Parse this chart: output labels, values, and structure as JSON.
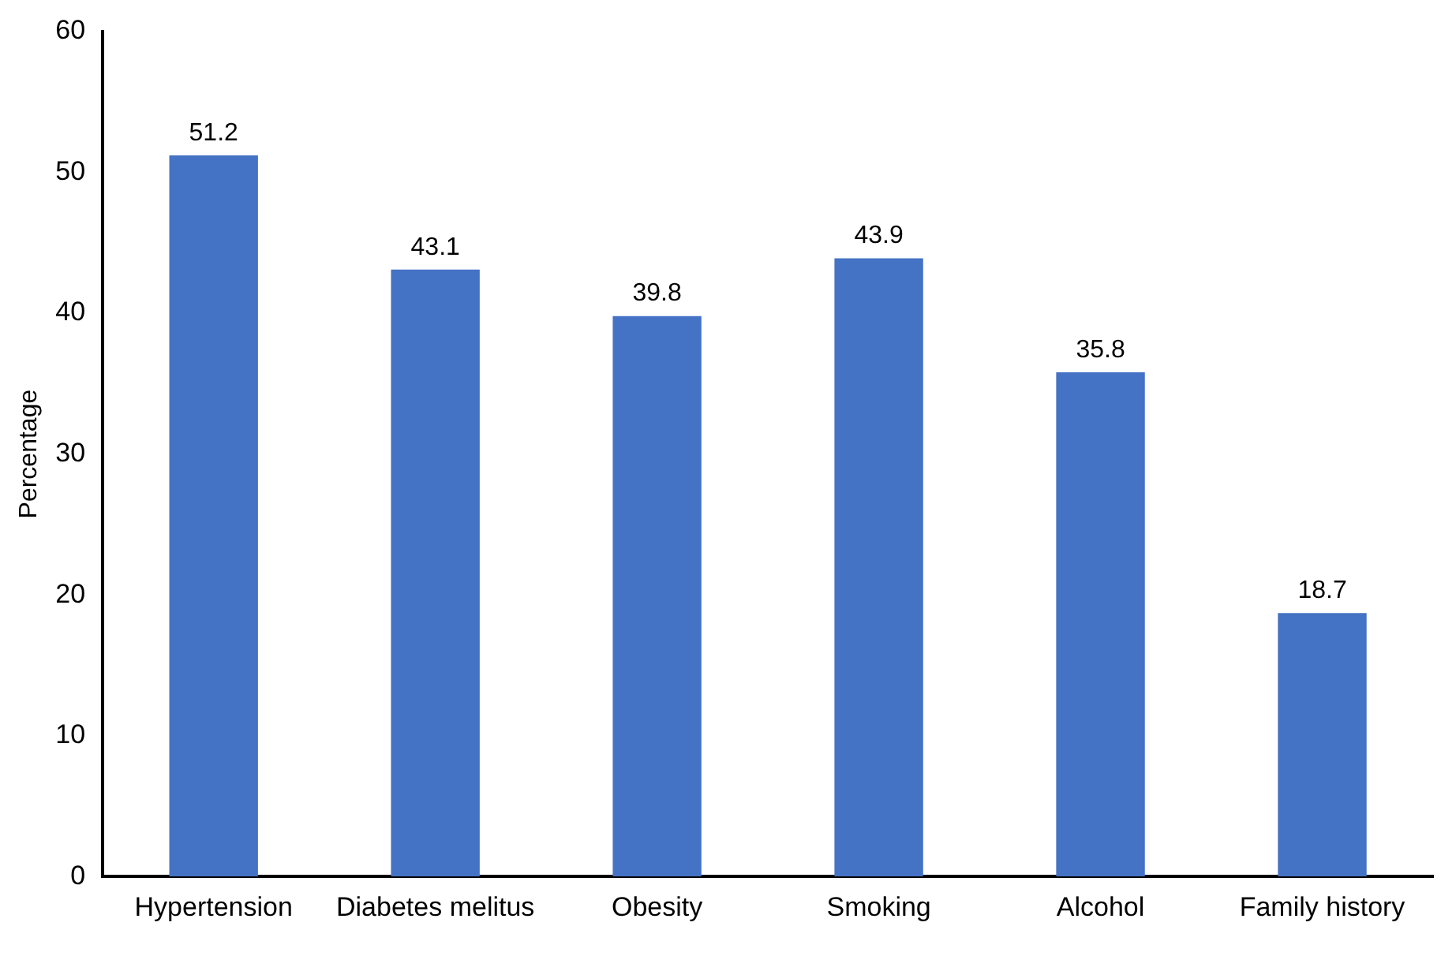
{
  "chart_data": {
    "type": "bar",
    "ylabel": "Percentage",
    "categories": [
      "Hypertension",
      "Diabetes melitus",
      "Obesity",
      "Smoking",
      "Alcohol",
      "Family history"
    ],
    "values": [
      51.2,
      43.1,
      39.8,
      43.9,
      35.8,
      18.7
    ],
    "color": "#4472c4",
    "ylim": [
      0,
      60
    ],
    "yticks": [
      0,
      10,
      20,
      30,
      40,
      50,
      60
    ],
    "grid": false,
    "legend": false,
    "data_labels": true
  }
}
